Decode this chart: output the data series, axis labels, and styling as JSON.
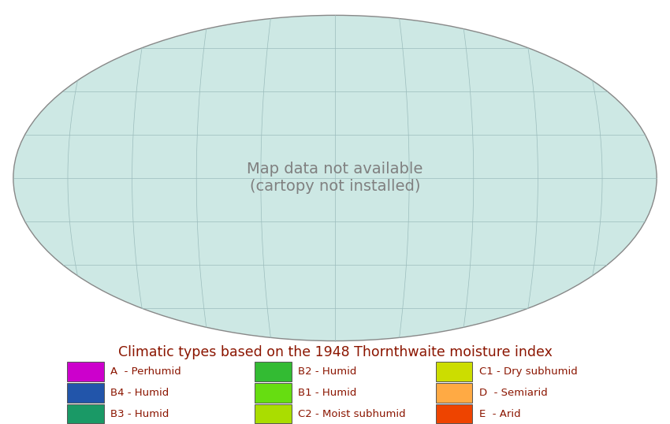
{
  "title": "Climatic types based on the 1948 Thornthwaite moisture index",
  "title_color": "#8B1500",
  "title_fontsize": 12.5,
  "background_color": "#ffffff",
  "map_bg_color": "#cde8e4",
  "legend_items_col1": [
    {
      "label": "A  - Perhumid",
      "color": "#CC00CC"
    },
    {
      "label": "B4 - Humid",
      "color": "#2255AA"
    },
    {
      "label": "B3 - Humid",
      "color": "#1A9966"
    }
  ],
  "legend_items_col2": [
    {
      "label": "B2 - Humid",
      "color": "#33BB33"
    },
    {
      "label": "B1 - Humid",
      "color": "#66DD11"
    },
    {
      "label": "C2 - Moist subhumid",
      "color": "#AADD00"
    }
  ],
  "legend_items_col3": [
    {
      "label": "C1 - Dry subhumid",
      "color": "#CCDD00"
    },
    {
      "label": "D  - Semiarid",
      "color": "#FFAA44"
    },
    {
      "label": "E  - Arid",
      "color": "#EE4400"
    }
  ],
  "figsize": [
    8.5,
    5.38
  ],
  "dpi": 100,
  "oval_border_color": "#888888",
  "oval_border_lw": 1.0,
  "grid_color": "#9bbcbc",
  "grid_lw": 0.5
}
